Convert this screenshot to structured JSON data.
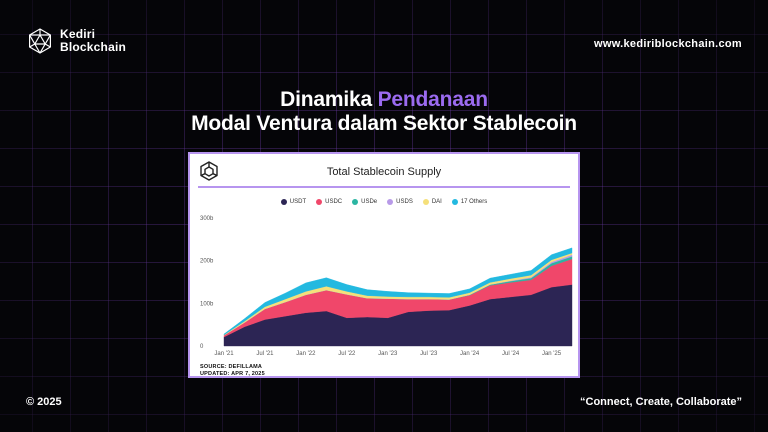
{
  "header": {
    "brand_line1": "Kediri",
    "brand_line2": "Blockchain",
    "logo_icon": "geodesic-sphere-icon",
    "url": "www.kediriblockchain.com"
  },
  "headline": {
    "line1_plain": "Dinamika ",
    "line1_accent": "Pendanaan",
    "line2": "Modal Ventura dalam Sektor Stablecoin",
    "accent_color": "#9b6bf0"
  },
  "chart_data": {
    "type": "area",
    "stacked": true,
    "title": "Total Stablecoin Supply",
    "source_line1": "SOURCE: DEFILLAMA",
    "source_line2": "UPDATED: APR 7, 2025",
    "legend_position": "top",
    "grid": false,
    "ylim": [
      0,
      300
    ],
    "y_ticks": [
      {
        "value": 0,
        "label": "0"
      },
      {
        "value": 100,
        "label": "100b"
      },
      {
        "value": 200,
        "label": "200b"
      },
      {
        "value": 300,
        "label": "300b"
      }
    ],
    "x_ticks": [
      "Jan '21",
      "Jul '21",
      "Jan '22",
      "Jul '22",
      "Jan '23",
      "Jul '23",
      "Jan '24",
      "Jul '24",
      "Jan '25"
    ],
    "x": [
      "Jan '21",
      "Apr '21",
      "Jul '21",
      "Oct '21",
      "Jan '22",
      "Apr '22",
      "Jul '22",
      "Oct '22",
      "Jan '23",
      "Apr '23",
      "Jul '23",
      "Oct '23",
      "Jan '24",
      "Apr '24",
      "Jul '24",
      "Oct '24",
      "Jan '25",
      "Apr '25"
    ],
    "series": [
      {
        "name": "USDT",
        "color": "#2c2554",
        "values": [
          21,
          45,
          62,
          70,
          78,
          82,
          66,
          68,
          66,
          80,
          83,
          84,
          95,
          110,
          115,
          120,
          138,
          144
        ]
      },
      {
        "name": "USDC",
        "color": "#f0476a",
        "values": [
          4,
          10,
          25,
          33,
          42,
          49,
          55,
          44,
          45,
          30,
          27,
          25,
          24,
          32,
          34,
          35,
          50,
          60
        ]
      },
      {
        "name": "USDe",
        "color": "#2bb5a2",
        "values": [
          0,
          0,
          0,
          0,
          0,
          0,
          0,
          0,
          0,
          0,
          0,
          0,
          1,
          2,
          3,
          4,
          6,
          6
        ]
      },
      {
        "name": "USDS",
        "color": "#b89ae8",
        "values": [
          0,
          0,
          0,
          0,
          0,
          0,
          0,
          0,
          0,
          0,
          0,
          0,
          0,
          0,
          1,
          2,
          3,
          4
        ]
      },
      {
        "name": "DAI",
        "color": "#f5e07a",
        "values": [
          1,
          3,
          5,
          7,
          8,
          9,
          7,
          6,
          5,
          5,
          5,
          5,
          5,
          5,
          5,
          5,
          5,
          4
        ]
      },
      {
        "name": "17 Others",
        "color": "#23b9e0",
        "values": [
          2,
          6,
          10,
          14,
          20,
          20,
          16,
          14,
          12,
          10,
          9,
          9,
          9,
          10,
          10,
          11,
          12,
          12
        ]
      }
    ]
  },
  "footer": {
    "copyright": "© 2025",
    "tagline": "“Connect, Create, Collaborate”"
  }
}
